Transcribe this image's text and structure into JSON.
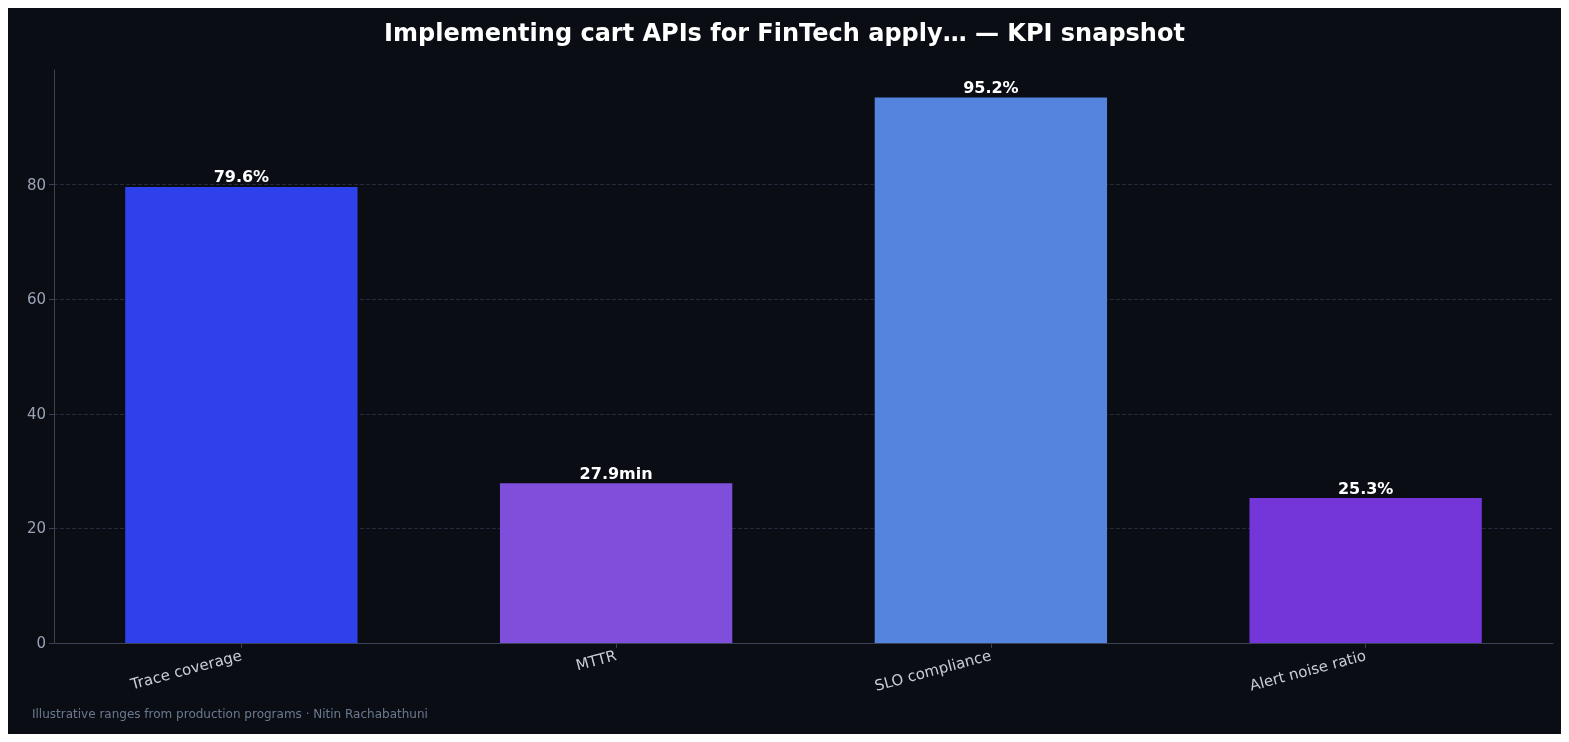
{
  "chart_data": {
    "type": "bar",
    "title": "Implementing cart APIs for FinTech apply… — KPI snapshot",
    "categories": [
      "Trace coverage",
      "MTTR",
      "SLO compliance",
      "Alert noise ratio"
    ],
    "values": [
      79.6,
      27.9,
      95.2,
      25.3
    ],
    "colors": [
      "#2f41ea",
      "#7f4fdc",
      "#5584de",
      "#7436d8"
    ],
    "value_labels": [
      "79.6%",
      "27.9min",
      "95.2%",
      "25.3%"
    ],
    "ylim": [
      0,
      100
    ],
    "yticks": [
      0,
      20,
      40,
      60,
      80
    ],
    "grid": "y",
    "annotations": [
      "Illustrative ranges from production programs · Nitin Rachabathuni"
    ]
  }
}
